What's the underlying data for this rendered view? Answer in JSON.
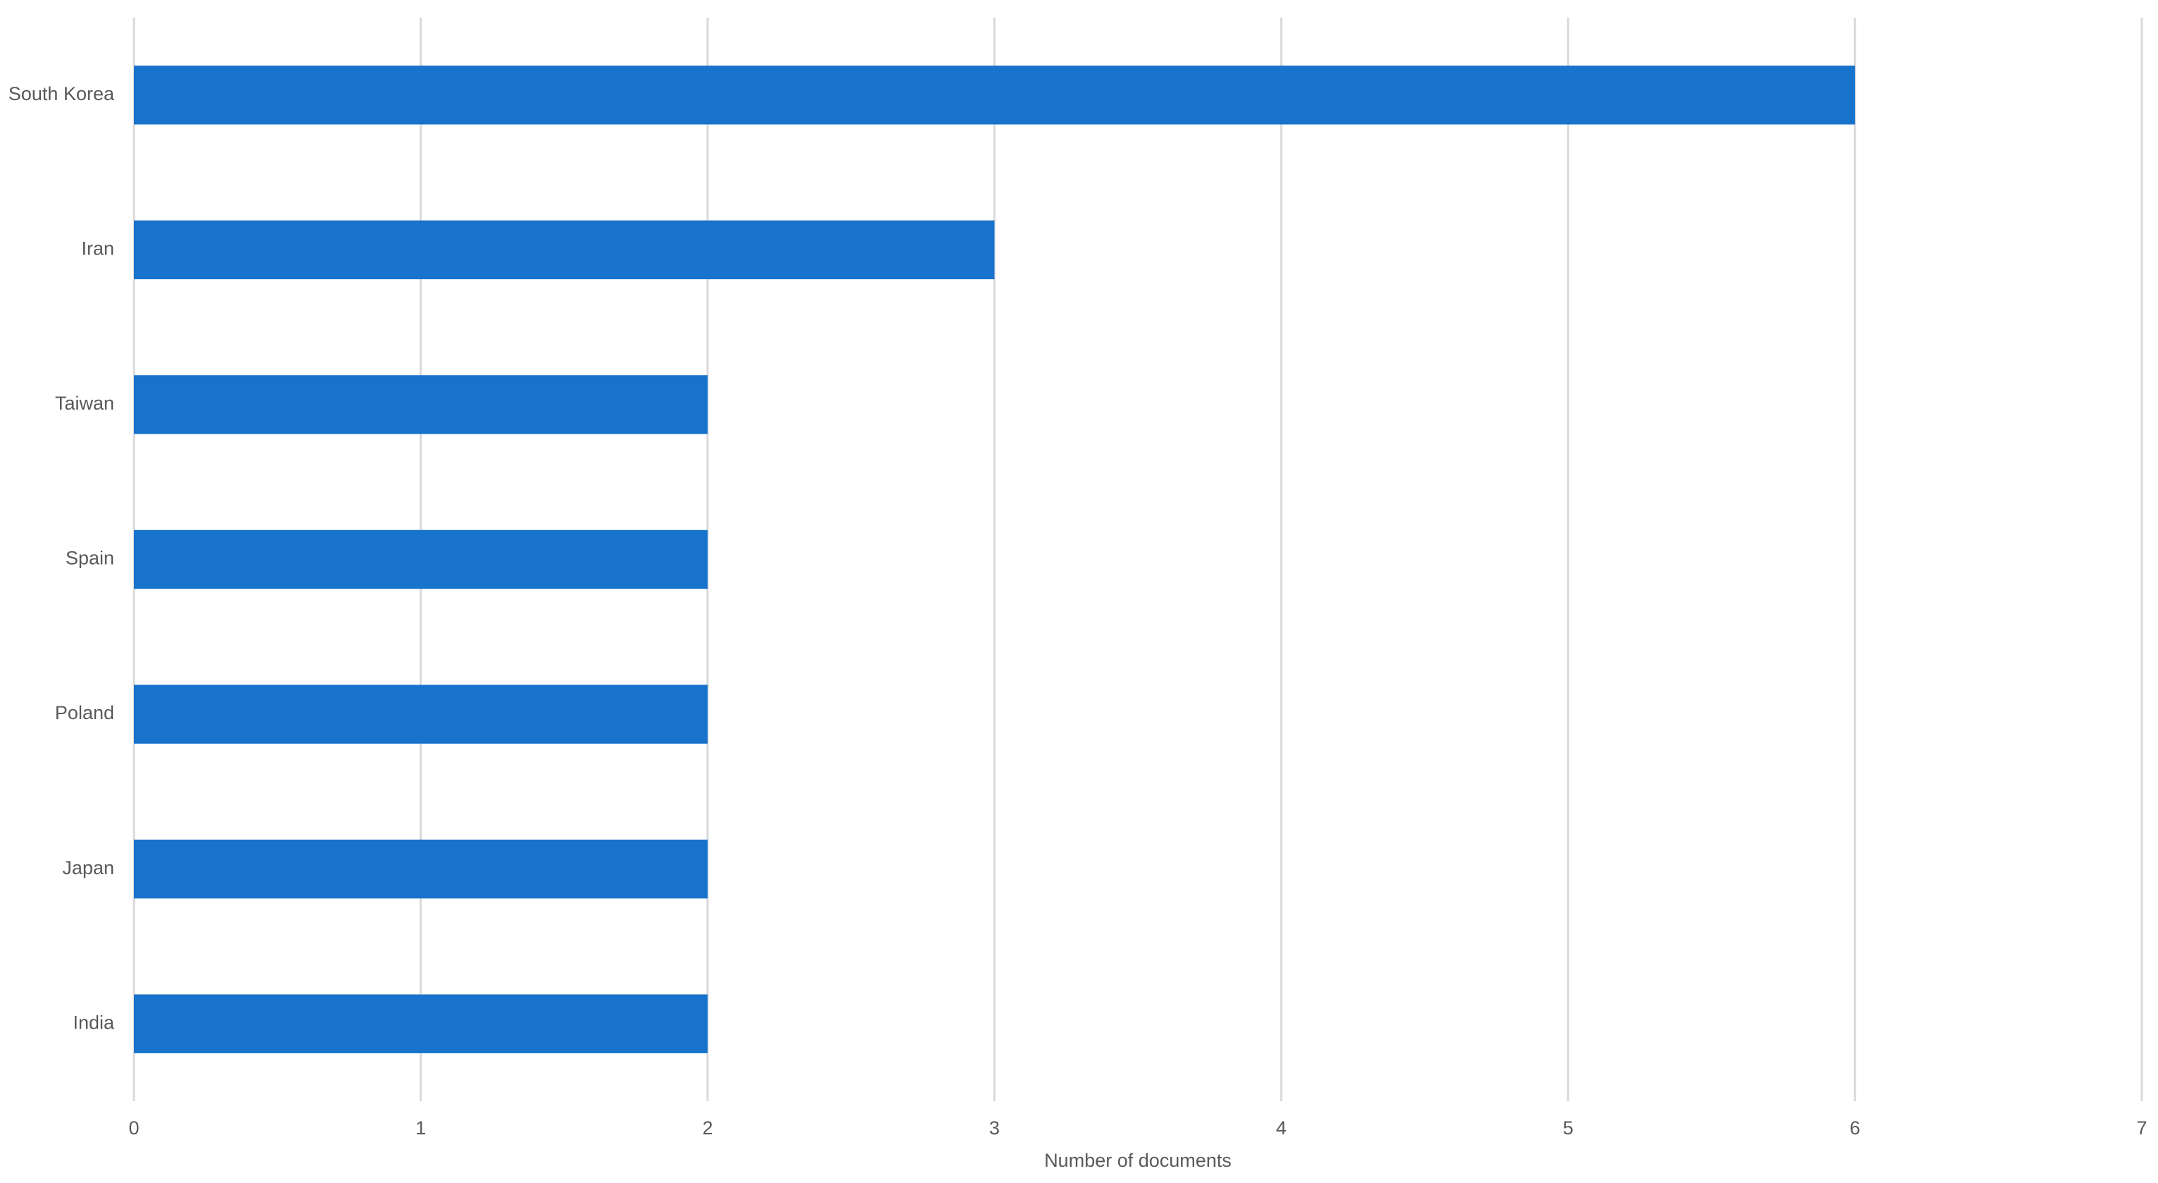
{
  "chart_data": {
    "type": "hbar",
    "x_label": "Number of documents",
    "categories": [
      "South Korea",
      "Iran",
      "Taiwan",
      "Spain",
      "Poland",
      "Japan",
      "India"
    ],
    "values": [
      6,
      3,
      2,
      2,
      2,
      2,
      2
    ],
    "color": "#1773cb",
    "xlim": [
      0,
      7
    ],
    "xticks": [
      0,
      1,
      2,
      3,
      4,
      5,
      6,
      7
    ],
    "grid": true
  }
}
